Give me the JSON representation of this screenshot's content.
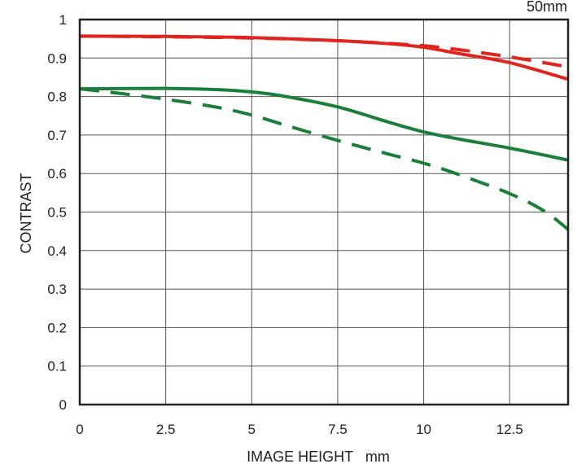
{
  "chart_data": {
    "type": "line",
    "title": "50mm",
    "xlabel": "IMAGE HEIGHT   mm",
    "ylabel": "CONTRAST",
    "xlim": [
      0,
      14.2
    ],
    "ylim": [
      0,
      1
    ],
    "grid": true,
    "xticks": [
      0,
      2.5,
      5,
      7.5,
      10,
      12.5
    ],
    "xtick_labels": [
      "0",
      "2.5",
      "5",
      "7.5",
      "10",
      "12.5"
    ],
    "yticks": [
      0,
      0.1,
      0.2,
      0.3,
      0.4,
      0.5,
      0.6,
      0.7,
      0.8,
      0.9,
      1
    ],
    "ytick_labels": [
      "0",
      "0.1",
      "0.2",
      "0.3",
      "0.4",
      "0.5",
      "0.6",
      "0.7",
      "0.8",
      "0.9",
      "1"
    ],
    "series": [
      {
        "name": "red-solid",
        "color": "#e0251f",
        "dash": false,
        "x": [
          0,
          2.5,
          5,
          7.5,
          9,
          10,
          11,
          12.5,
          14.2
        ],
        "y": [
          0.957,
          0.956,
          0.953,
          0.945,
          0.937,
          0.928,
          0.912,
          0.888,
          0.845
        ]
      },
      {
        "name": "red-dashed",
        "color": "#e0251f",
        "dash": true,
        "x": [
          0,
          2.5,
          5,
          7.5,
          9,
          10,
          11,
          12.5,
          14.2
        ],
        "y": [
          0.957,
          0.955,
          0.952,
          0.945,
          0.938,
          0.932,
          0.922,
          0.903,
          0.877
        ]
      },
      {
        "name": "green-solid",
        "color": "#1a7f3a",
        "dash": false,
        "x": [
          0,
          2.5,
          4,
          5,
          6,
          7.5,
          9,
          10,
          11,
          12.5,
          14.2
        ],
        "y": [
          0.82,
          0.821,
          0.818,
          0.812,
          0.8,
          0.773,
          0.733,
          0.708,
          0.69,
          0.666,
          0.635
        ]
      },
      {
        "name": "green-dashed",
        "color": "#1a7f3a",
        "dash": true,
        "x": [
          0,
          1,
          2.5,
          4,
          5,
          6,
          7.5,
          9,
          10,
          11,
          12.5,
          13.5,
          14.2
        ],
        "y": [
          0.82,
          0.81,
          0.793,
          0.772,
          0.752,
          0.725,
          0.686,
          0.65,
          0.627,
          0.598,
          0.548,
          0.503,
          0.455
        ]
      }
    ]
  }
}
